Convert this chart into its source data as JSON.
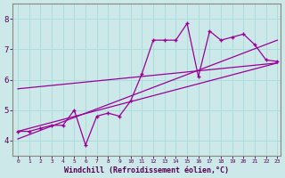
{
  "background_color": "#cce8e8",
  "line_color": "#990099",
  "grid_color": "#aadddd",
  "xlabel": "Windchill (Refroidissement éolien,°C)",
  "xlim_min": -0.5,
  "xlim_max": 23.3,
  "ylim_min": 3.5,
  "ylim_max": 8.5,
  "yticks": [
    4,
    5,
    6,
    7,
    8
  ],
  "xticks": [
    0,
    1,
    2,
    3,
    4,
    5,
    6,
    7,
    8,
    9,
    10,
    11,
    12,
    13,
    14,
    15,
    16,
    17,
    18,
    19,
    20,
    21,
    22,
    23
  ],
  "data_x": [
    0,
    1,
    2,
    3,
    4,
    5,
    6,
    7,
    8,
    9,
    10,
    11,
    12,
    13,
    14,
    15,
    16,
    17,
    18,
    19,
    20,
    21,
    22,
    23
  ],
  "data_y": [
    4.3,
    4.3,
    4.4,
    4.5,
    4.5,
    5.0,
    3.85,
    4.8,
    4.9,
    4.8,
    5.3,
    6.2,
    7.3,
    7.3,
    7.3,
    7.85,
    6.1,
    7.6,
    7.3,
    7.4,
    7.5,
    7.15,
    6.65,
    6.6
  ],
  "reg_lines": [
    [
      [
        0,
        23
      ],
      [
        4.3,
        6.55
      ]
    ],
    [
      [
        0,
        23
      ],
      [
        4.05,
        7.3
      ]
    ],
    [
      [
        0,
        23
      ],
      [
        5.7,
        6.55
      ]
    ]
  ]
}
